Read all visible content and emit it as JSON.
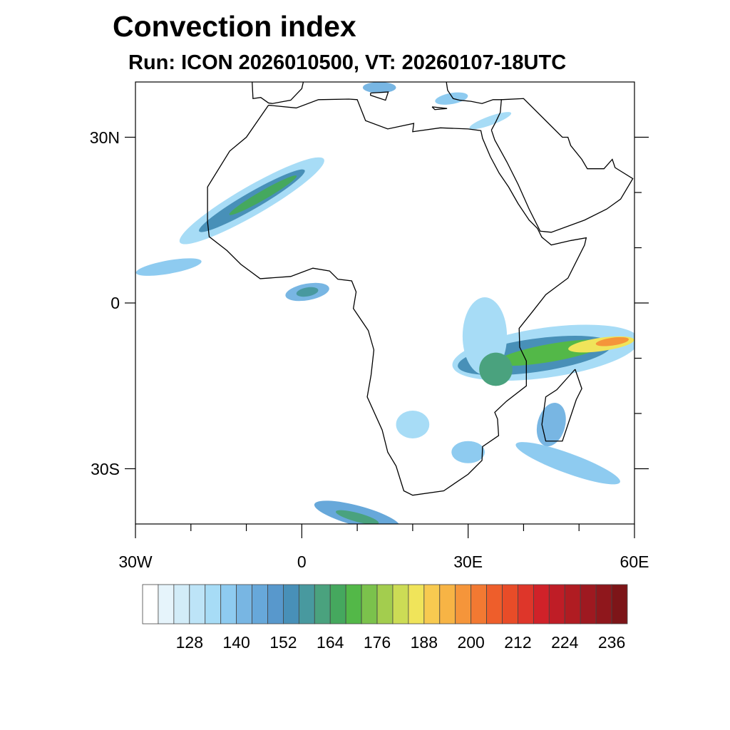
{
  "title": "Convection index",
  "subtitle": "Run: ICON 2026010500,  VT: 20260107-18UTC",
  "map": {
    "lon_range": [
      -30,
      60
    ],
    "lat_range": [
      -40,
      40
    ],
    "lon_labels": [
      {
        "lon": -30,
        "text": "30W"
      },
      {
        "lon": 0,
        "text": "0"
      },
      {
        "lon": 30,
        "text": "30E"
      },
      {
        "lon": 60,
        "text": "60E"
      }
    ],
    "lat_labels": [
      {
        "lat": 30,
        "text": "30N"
      },
      {
        "lat": 0,
        "text": "0"
      },
      {
        "lat": -30,
        "text": "30S"
      }
    ],
    "blobs": [
      {
        "lon": -9,
        "lat": 18.5,
        "rlon": 15,
        "rlat": 2.6,
        "rot": -30,
        "level": 4
      },
      {
        "lon": -9,
        "lat": 18.5,
        "rlon": 11,
        "rlat": 1.5,
        "rot": -30,
        "level": 9
      },
      {
        "lon": -7,
        "lat": 19.5,
        "rlon": 7,
        "rlat": 0.8,
        "rot": -30,
        "level": 12
      },
      {
        "lon": -24,
        "lat": 6.5,
        "rlon": 6,
        "rlat": 1.2,
        "rot": -10,
        "level": 5
      },
      {
        "lon": 1,
        "lat": 2,
        "rlon": 4,
        "rlat": 1.5,
        "rot": -10,
        "level": 6
      },
      {
        "lon": 1,
        "lat": 2,
        "rlon": 2,
        "rlat": 0.8,
        "rot": -10,
        "level": 10
      },
      {
        "lon": 44,
        "lat": -9,
        "rlon": 17,
        "rlat": 4.5,
        "rot": -8,
        "level": 4
      },
      {
        "lon": 42,
        "lat": -9.5,
        "rlon": 14,
        "rlat": 3,
        "rot": -8,
        "level": 9
      },
      {
        "lon": 45,
        "lat": -9,
        "rlon": 10,
        "rlat": 1.6,
        "rot": -10,
        "level": 13
      },
      {
        "lon": 54,
        "lat": -7.5,
        "rlon": 6,
        "rlat": 1.2,
        "rot": -8,
        "level": 17
      },
      {
        "lon": 56,
        "lat": -7,
        "rlon": 3,
        "rlat": 0.7,
        "rot": -8,
        "level": 20
      },
      {
        "lon": 33,
        "lat": -6,
        "rlon": 4,
        "rlat": 7,
        "rot": 0,
        "level": 4
      },
      {
        "lon": 35,
        "lat": -12,
        "rlon": 3,
        "rlat": 3,
        "rot": 0,
        "level": 11
      },
      {
        "lon": 48,
        "lat": -29,
        "rlon": 10,
        "rlat": 1.8,
        "rot": 20,
        "level": 5
      },
      {
        "lon": 45,
        "lat": -22,
        "rlon": 2.5,
        "rlat": 4,
        "rot": 15,
        "level": 6
      },
      {
        "lon": 10,
        "lat": -38.5,
        "rlon": 8,
        "rlat": 1.8,
        "rot": 15,
        "level": 7
      },
      {
        "lon": 10,
        "lat": -38.8,
        "rlon": 4,
        "rlat": 0.8,
        "rot": 15,
        "level": 11
      },
      {
        "lon": 20,
        "lat": -22,
        "rlon": 3,
        "rlat": 2.5,
        "rot": 0,
        "level": 4
      },
      {
        "lon": 30,
        "lat": -27,
        "rlon": 3,
        "rlat": 2,
        "rot": 0,
        "level": 5
      },
      {
        "lon": 14,
        "lat": 39,
        "rlon": 3,
        "rlat": 1,
        "rot": 0,
        "level": 6
      },
      {
        "lon": 27,
        "lat": 37,
        "rlon": 3,
        "rlat": 1,
        "rot": -10,
        "level": 5
      },
      {
        "lon": 34,
        "lat": 33,
        "rlon": 4,
        "rlat": 0.8,
        "rot": -20,
        "level": 4
      }
    ]
  },
  "colorbar": {
    "levels": [
      120,
      124,
      128,
      132,
      136,
      140,
      144,
      148,
      152,
      156,
      160,
      164,
      168,
      172,
      176,
      180,
      184,
      188,
      192,
      196,
      200,
      204,
      208,
      212,
      216,
      220,
      224,
      228,
      232,
      236
    ],
    "labels": [
      "128",
      "140",
      "152",
      "164",
      "176",
      "188",
      "200",
      "212",
      "224",
      "236"
    ],
    "colors": [
      "#ffffff",
      "#e6f4fb",
      "#d2ecf8",
      "#bde4f7",
      "#a7dcf6",
      "#8ecbf0",
      "#78b6e3",
      "#67a8da",
      "#5898cc",
      "#4890b8",
      "#48999f",
      "#4aa27e",
      "#45a85e",
      "#53b848",
      "#7bc24c",
      "#a3cd4e",
      "#ccdc55",
      "#f0e45a",
      "#f8ca50",
      "#f7b445",
      "#f5953a",
      "#f27932",
      "#ee5e2b",
      "#e84c28",
      "#de362a",
      "#d02229",
      "#bf1d26",
      "#b01c22",
      "#9e1920",
      "#8f171c",
      "#7d1518"
    ]
  }
}
